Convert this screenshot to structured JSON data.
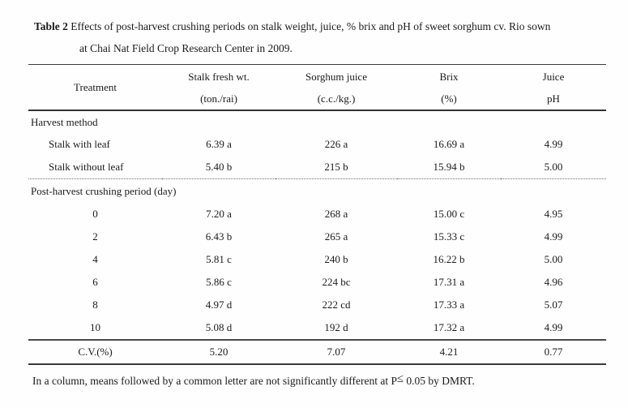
{
  "title": {
    "bold": "Table 2",
    "rest": " Effects of post-harvest crushing periods on stalk weight, juice, % brix and pH of sweet sorghum cv. Rio sown",
    "line2": "at Chai Nat Field Crop Research Center in 2009."
  },
  "table": {
    "header": {
      "treatment": "Treatment",
      "cols": [
        {
          "line1": "Stalk fresh wt.",
          "line2": "(ton./rai)"
        },
        {
          "line1": "Sorghum juice",
          "line2": "(c.c./kg.)"
        },
        {
          "line1": "Brix",
          "line2": "(%)"
        },
        {
          "line1": "Juice",
          "line2": "pH"
        }
      ]
    },
    "sections": [
      {
        "label": "Harvest method",
        "rows": [
          {
            "treatment": "Stalk with leaf",
            "align": "left",
            "values": [
              "6.39 a",
              "226 a",
              "16.69 a",
              "4.99"
            ]
          },
          {
            "treatment": "Stalk without leaf",
            "align": "left",
            "values": [
              "5.40 b",
              "215 b",
              "15.94 b",
              "5.00"
            ]
          }
        ]
      },
      {
        "label": "Post-harvest crushing period (day)",
        "rows": [
          {
            "treatment": "0",
            "align": "center",
            "values": [
              "7.20 a",
              "268 a",
              "15.00 c",
              "4.95"
            ]
          },
          {
            "treatment": "2",
            "align": "center",
            "values": [
              "6.43 b",
              "265 a",
              "15.33 c",
              "4.99"
            ]
          },
          {
            "treatment": "4",
            "align": "center",
            "values": [
              "5.81 c",
              "240 b",
              "16.22 b",
              "5.00"
            ]
          },
          {
            "treatment": "6",
            "align": "center",
            "values": [
              "5.86 c",
              "224 bc",
              "17.31 a",
              "4.96"
            ]
          },
          {
            "treatment": "8",
            "align": "center",
            "values": [
              "4.97 d",
              "222 cd",
              "17.33 a",
              "5.07"
            ]
          },
          {
            "treatment": "10",
            "align": "center",
            "values": [
              "5.08 d",
              "192 d",
              "17.32 a",
              "4.99"
            ]
          }
        ]
      }
    ],
    "cv_row": {
      "treatment": "C.V.(%)",
      "values": [
        "5.20",
        "7.07",
        "4.21",
        "0.77"
      ]
    }
  },
  "note": {
    "prefix": "In a column, means followed by a common letter are not significantly different at P",
    "symbol": "≤",
    "suffix": " 0.05 by DMRT."
  }
}
